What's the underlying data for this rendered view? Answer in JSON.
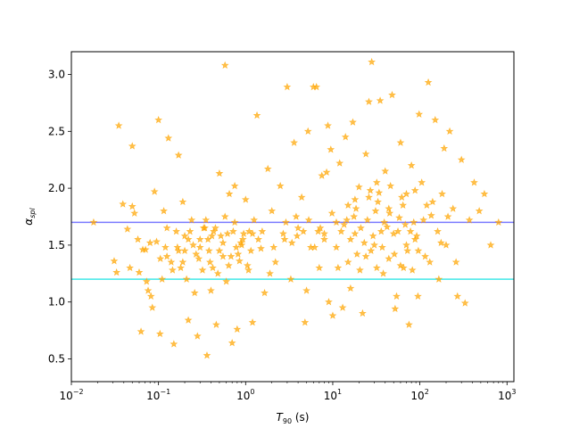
{
  "chart_data": {
    "type": "scatter",
    "xlabel_main": "T",
    "xlabel_sub": "90",
    "xlabel_unit": " (s)",
    "ylabel_main": "α",
    "ylabel_sub": "spl",
    "xscale": "log",
    "xlim": [
      0.01,
      1200
    ],
    "ylim": [
      0.3,
      3.2
    ],
    "x_ticks": [
      {
        "value": 0.01,
        "base": "10",
        "exp": "−2"
      },
      {
        "value": 0.1,
        "base": "10",
        "exp": "−1"
      },
      {
        "value": 1,
        "base": "10",
        "exp": "0"
      },
      {
        "value": 10,
        "base": "10",
        "exp": "1"
      },
      {
        "value": 100,
        "base": "10",
        "exp": "2"
      },
      {
        "value": 1000,
        "base": "10",
        "exp": "3"
      }
    ],
    "y_ticks": [
      {
        "value": 0.5,
        "label": "0.5"
      },
      {
        "value": 1.0,
        "label": "1.0"
      },
      {
        "value": 1.5,
        "label": "1.5"
      },
      {
        "value": 2.0,
        "label": "2.0"
      },
      {
        "value": 2.5,
        "label": "2.5"
      },
      {
        "value": 3.0,
        "label": "3.0"
      }
    ],
    "hlines": [
      {
        "y": 1.7,
        "color": "#7a7aff"
      },
      {
        "y": 1.2,
        "color": "#40e8e8"
      }
    ],
    "marker_color": "#ffa500",
    "points": [
      [
        0.018,
        1.7
      ],
      [
        0.031,
        1.36
      ],
      [
        0.033,
        1.26
      ],
      [
        0.035,
        2.55
      ],
      [
        0.039,
        1.86
      ],
      [
        0.044,
        1.64
      ],
      [
        0.047,
        1.3
      ],
      [
        0.05,
        2.37
      ],
      [
        0.05,
        1.84
      ],
      [
        0.053,
        1.78
      ],
      [
        0.058,
        1.55
      ],
      [
        0.06,
        1.26
      ],
      [
        0.063,
        0.74
      ],
      [
        0.066,
        1.46
      ],
      [
        0.071,
        1.46
      ],
      [
        0.073,
        1.18
      ],
      [
        0.076,
        1.1
      ],
      [
        0.08,
        1.52
      ],
      [
        0.082,
        1.05
      ],
      [
        0.085,
        0.95
      ],
      [
        0.09,
        1.97
      ],
      [
        0.095,
        1.53
      ],
      [
        0.1,
        2.6
      ],
      [
        0.104,
        0.72
      ],
      [
        0.11,
        1.2
      ],
      [
        0.115,
        1.8
      ],
      [
        0.12,
        1.48
      ],
      [
        0.125,
        1.4
      ],
      [
        0.13,
        2.44
      ],
      [
        0.14,
        1.35
      ],
      [
        0.15,
        0.63
      ],
      [
        0.16,
        1.62
      ],
      [
        0.17,
        2.29
      ],
      [
        0.18,
        1.3
      ],
      [
        0.19,
        1.88
      ],
      [
        0.2,
        1.45
      ],
      [
        0.21,
        1.2
      ],
      [
        0.22,
        0.84
      ],
      [
        0.24,
        1.72
      ],
      [
        0.26,
        1.08
      ],
      [
        0.28,
        0.7
      ],
      [
        0.3,
        1.55
      ],
      [
        0.32,
        1.28
      ],
      [
        0.34,
        1.65
      ],
      [
        0.36,
        0.53
      ],
      [
        0.38,
        1.45
      ],
      [
        0.4,
        1.1
      ],
      [
        0.43,
        1.62
      ],
      [
        0.46,
        0.8
      ],
      [
        0.5,
        2.13
      ],
      [
        0.55,
        1.4
      ],
      [
        0.58,
        3.08
      ],
      [
        0.6,
        1.18
      ],
      [
        0.65,
        1.95
      ],
      [
        0.7,
        0.64
      ],
      [
        0.75,
        2.02
      ],
      [
        0.8,
        0.76
      ],
      [
        0.85,
        1.36
      ],
      [
        0.9,
        1.5
      ],
      [
        1.0,
        1.9
      ],
      [
        1.1,
        1.62
      ],
      [
        1.2,
        0.82
      ],
      [
        1.35,
        2.64
      ],
      [
        1.5,
        1.47
      ],
      [
        1.65,
        1.08
      ],
      [
        1.8,
        2.17
      ],
      [
        2.0,
        1.8
      ],
      [
        2.2,
        1.35
      ],
      [
        2.5,
        2.02
      ],
      [
        2.8,
        1.55
      ],
      [
        3.0,
        2.89
      ],
      [
        3.3,
        1.2
      ],
      [
        3.6,
        2.4
      ],
      [
        4.0,
        1.65
      ],
      [
        4.4,
        1.92
      ],
      [
        4.8,
        0.82
      ],
      [
        5.2,
        2.5
      ],
      [
        5.6,
        1.48
      ],
      [
        6.0,
        2.89
      ],
      [
        6.5,
        2.89
      ],
      [
        7.0,
        1.3
      ],
      [
        7.5,
        2.11
      ],
      [
        8.0,
        1.6
      ],
      [
        8.5,
        2.14
      ],
      [
        9.0,
        1.0
      ],
      [
        9.5,
        2.34
      ],
      [
        10.0,
        0.88
      ],
      [
        11.0,
        1.7
      ],
      [
        12.0,
        2.22
      ],
      [
        13.0,
        0.95
      ],
      [
        14.0,
        2.45
      ],
      [
        15.0,
        1.85
      ],
      [
        16.0,
        1.12
      ],
      [
        17.0,
        2.58
      ],
      [
        18.0,
        1.6
      ],
      [
        20.0,
        2.01
      ],
      [
        22.0,
        0.9
      ],
      [
        24.0,
        2.3
      ],
      [
        26.0,
        2.76
      ],
      [
        28.0,
        3.11
      ],
      [
        30.0,
        1.5
      ],
      [
        32.0,
        2.05
      ],
      [
        35.0,
        2.77
      ],
      [
        38.0,
        1.25
      ],
      [
        40.0,
        2.15
      ],
      [
        44.0,
        1.82
      ],
      [
        48.0,
        2.82
      ],
      [
        52.0,
        0.94
      ],
      [
        56.0,
        1.62
      ],
      [
        60.0,
        2.4
      ],
      [
        65.0,
        1.3
      ],
      [
        70.0,
        1.95
      ],
      [
        75.0,
        0.8
      ],
      [
        80.0,
        2.2
      ],
      [
        88.0,
        1.55
      ],
      [
        95.0,
        1.05
      ],
      [
        105.0,
        2.05
      ],
      [
        115.0,
        1.4
      ],
      [
        125.0,
        2.93
      ],
      [
        135.0,
        1.76
      ],
      [
        150.0,
        2.6
      ],
      [
        165.0,
        1.2
      ],
      [
        180.0,
        1.95
      ],
      [
        200.0,
        1.5
      ],
      [
        220.0,
        2.5
      ],
      [
        240.0,
        1.82
      ],
      [
        270.0,
        1.05
      ],
      [
        300.0,
        2.25
      ],
      [
        330.0,
        0.99
      ],
      [
        370.0,
        1.72
      ],
      [
        420.0,
        2.05
      ],
      [
        480.0,
        1.8
      ],
      [
        550.0,
        1.95
      ],
      [
        650.0,
        1.5
      ],
      [
        800.0,
        1.7
      ],
      [
        260.0,
        1.35
      ],
      [
        190.0,
        2.35
      ],
      [
        140.0,
        1.88
      ],
      [
        98.0,
        2.65
      ],
      [
        72.0,
        1.45
      ],
      [
        54.0,
        1.05
      ],
      [
        36.0,
        1.62
      ],
      [
        27.0,
        1.98
      ],
      [
        19.0,
        1.42
      ],
      [
        14.5,
        1.72
      ],
      [
        11.5,
        1.3
      ],
      [
        8.8,
        2.55
      ],
      [
        6.8,
        1.62
      ],
      [
        5.0,
        1.1
      ],
      [
        3.8,
        1.75
      ],
      [
        2.7,
        1.6
      ],
      [
        1.9,
        1.25
      ],
      [
        1.4,
        1.55
      ],
      [
        1.05,
        1.32
      ],
      [
        0.78,
        1.48
      ],
      [
        0.62,
        1.6
      ],
      [
        0.48,
        1.25
      ],
      [
        0.37,
        1.55
      ],
      [
        0.29,
        1.38
      ],
      [
        0.23,
        1.62
      ],
      [
        0.19,
        1.35
      ],
      [
        0.165,
        1.48
      ],
      [
        0.145,
        1.28
      ],
      [
        0.125,
        1.65
      ],
      [
        0.105,
        1.38
      ],
      [
        0.22,
        1.55
      ],
      [
        0.27,
        1.42
      ],
      [
        0.33,
        1.65
      ],
      [
        0.42,
        1.3
      ],
      [
        0.52,
        1.58
      ],
      [
        0.68,
        1.4
      ],
      [
        0.88,
        1.52
      ],
      [
        1.15,
        1.45
      ],
      [
        1.55,
        1.62
      ],
      [
        2.1,
        1.48
      ],
      [
        2.9,
        1.7
      ],
      [
        3.9,
        1.58
      ],
      [
        5.3,
        1.72
      ],
      [
        7.2,
        1.65
      ],
      [
        9.8,
        1.78
      ],
      [
        13.5,
        1.68
      ],
      [
        18.5,
        1.82
      ],
      [
        25.0,
        1.72
      ],
      [
        33.0,
        1.88
      ],
      [
        45.0,
        1.78
      ],
      [
        62.0,
        1.92
      ],
      [
        85.0,
        1.7
      ],
      [
        120.0,
        1.85
      ],
      [
        160.0,
        1.62
      ],
      [
        210.0,
        1.75
      ],
      [
        16.0,
        1.55
      ],
      [
        21.0,
        1.65
      ],
      [
        29.0,
        1.58
      ],
      [
        39.0,
        1.7
      ],
      [
        50.0,
        1.6
      ],
      [
        68.0,
        1.68
      ],
      [
        92.0,
        1.58
      ],
      [
        12.5,
        1.62
      ],
      [
        17.5,
        1.75
      ],
      [
        23.0,
        1.52
      ],
      [
        31.0,
        1.8
      ],
      [
        42.0,
        1.66
      ],
      [
        58.0,
        1.74
      ],
      [
        78.0,
        1.62
      ],
      [
        110.0,
        1.72
      ],
      [
        26.0,
        1.92
      ],
      [
        34.0,
        1.96
      ],
      [
        46.0,
        2.02
      ],
      [
        64.0,
        1.85
      ],
      [
        88.0,
        1.98
      ],
      [
        18.0,
        1.9
      ],
      [
        24.0,
        1.4
      ],
      [
        32.0,
        1.3
      ],
      [
        44.0,
        1.38
      ],
      [
        60.0,
        1.32
      ],
      [
        82.0,
        1.28
      ],
      [
        15.0,
        1.35
      ],
      [
        20.5,
        1.28
      ],
      [
        27.5,
        1.45
      ],
      [
        37.0,
        1.48
      ],
      [
        51.0,
        1.42
      ],
      [
        70.0,
        1.5
      ],
      [
        96.0,
        1.45
      ],
      [
        130.0,
        1.35
      ],
      [
        175.0,
        1.52
      ],
      [
        11.0,
        1.48
      ],
      [
        8.0,
        1.55
      ],
      [
        6.2,
        1.48
      ],
      [
        4.6,
        1.62
      ],
      [
        3.4,
        1.52
      ],
      [
        0.35,
        1.72
      ],
      [
        0.45,
        1.65
      ],
      [
        0.58,
        1.75
      ],
      [
        0.75,
        1.7
      ],
      [
        0.95,
        1.6
      ],
      [
        1.25,
        1.72
      ],
      [
        0.3,
        1.48
      ],
      [
        0.39,
        1.35
      ],
      [
        0.5,
        1.45
      ],
      [
        0.64,
        1.32
      ],
      [
        0.82,
        1.42
      ],
      [
        1.08,
        1.28
      ],
      [
        0.25,
        1.5
      ],
      [
        0.2,
        1.58
      ],
      [
        0.17,
        1.45
      ],
      [
        0.41,
        1.58
      ],
      [
        0.55,
        1.52
      ],
      [
        0.72,
        1.62
      ],
      [
        0.93,
        1.55
      ],
      [
        1.2,
        1.6
      ]
    ]
  }
}
